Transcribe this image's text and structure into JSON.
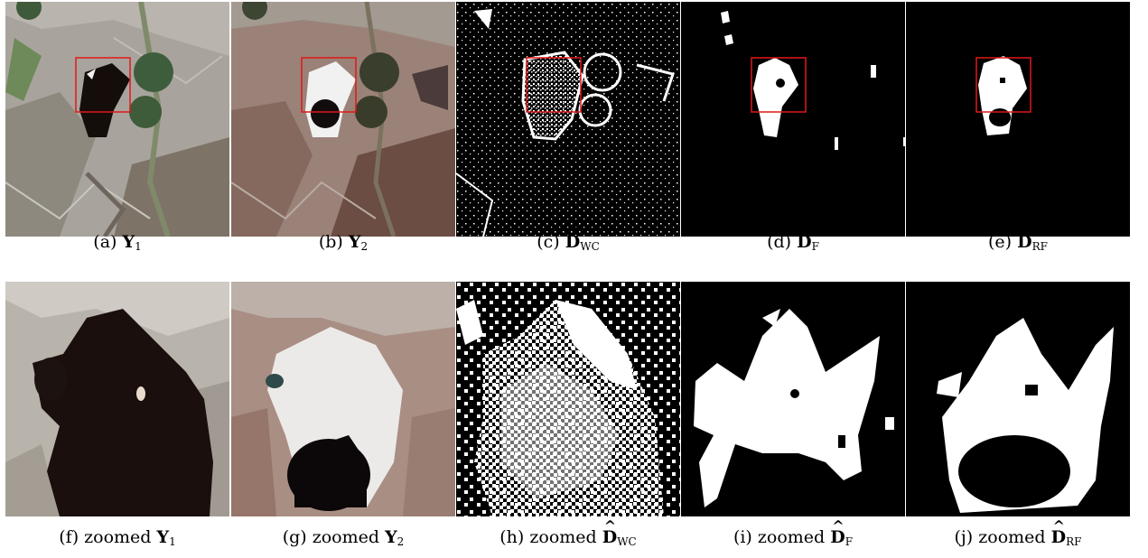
{
  "captions": [
    {
      "letter": "(a)",
      "prefix": "",
      "sym": "Y",
      "hat": false,
      "sub": "1"
    },
    {
      "letter": "(b)",
      "prefix": "",
      "sym": "Y",
      "hat": false,
      "sub": "2"
    },
    {
      "letter": "(c)",
      "prefix": "",
      "sym": "D",
      "hat": true,
      "sub": "WC"
    },
    {
      "letter": "(d)",
      "prefix": "",
      "sym": "D",
      "hat": true,
      "sub": "F"
    },
    {
      "letter": "(e)",
      "prefix": "",
      "sym": "D",
      "hat": true,
      "sub": "RF"
    },
    {
      "letter": "(f)",
      "prefix": "zoomed",
      "sym": "Y",
      "hat": false,
      "sub": "1"
    },
    {
      "letter": "(g)",
      "prefix": "zoomed",
      "sym": "Y",
      "hat": false,
      "sub": "2"
    },
    {
      "letter": "(h)",
      "prefix": "zoomed",
      "sym": "D",
      "hat": true,
      "sub": "WC"
    },
    {
      "letter": "(i)",
      "prefix": "zoomed",
      "sym": "D",
      "hat": true,
      "sub": "F"
    },
    {
      "letter": "(j)",
      "prefix": "zoomed",
      "sym": "D",
      "hat": true,
      "sub": "RF"
    }
  ],
  "colors": {
    "roi_box": "#e01818",
    "mask_fg": "#ffffff",
    "mask_bg": "#000000"
  }
}
